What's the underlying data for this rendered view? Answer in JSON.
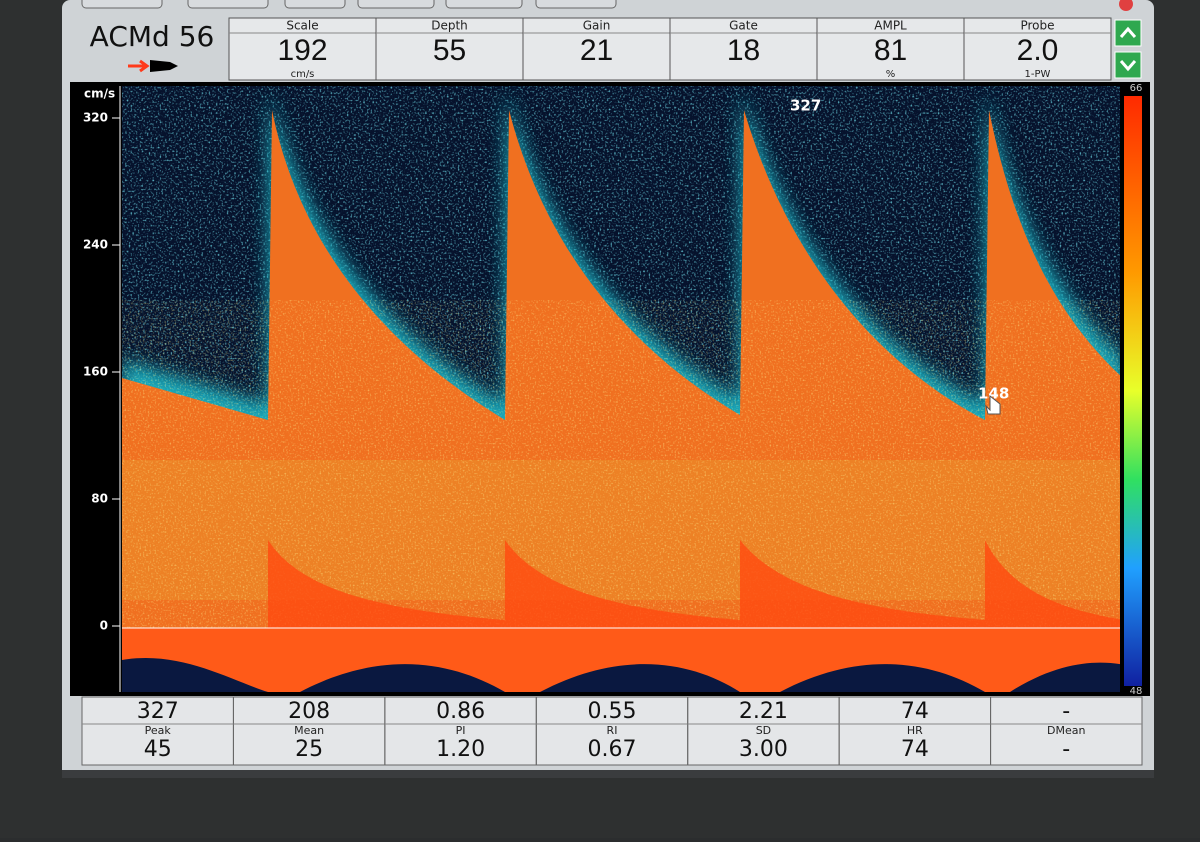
{
  "header": {
    "title": "ACMd 56",
    "params": [
      {
        "label": "Scale",
        "value": "192",
        "unit": "cm/s"
      },
      {
        "label": "Depth",
        "value": "55"
      },
      {
        "label": "Gain",
        "value": "21"
      },
      {
        "label": "Gate",
        "value": "18"
      },
      {
        "label": "AMPL",
        "value": "81",
        "unit": "%"
      },
      {
        "label": "Probe",
        "value": "2.0",
        "unit": "1-PW"
      }
    ]
  },
  "spectrum": {
    "axis_unit": "cm/s",
    "yticks": [
      "320",
      "240",
      "160",
      "80",
      "0"
    ],
    "annotations": [
      "327",
      "148"
    ],
    "colorbar": {
      "top": "66",
      "bottom": "48"
    }
  },
  "table": {
    "top": [
      "327",
      "208",
      "0.86",
      "0.55",
      "2.21",
      "74",
      "-"
    ],
    "labels": [
      "Peak",
      "Mean",
      "PI",
      "RI",
      "SD",
      "HR",
      "DMean"
    ],
    "bottom": [
      "45",
      "25",
      "1.20",
      "0.67",
      "3.00",
      "74",
      "-"
    ]
  }
}
